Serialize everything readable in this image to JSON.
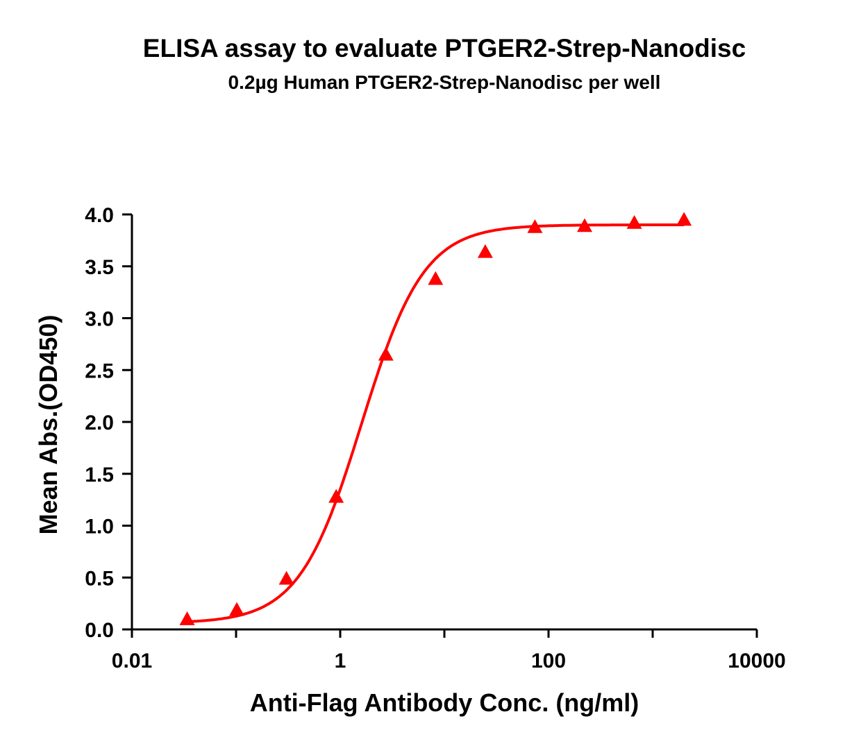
{
  "chart_data": {
    "type": "scatter",
    "title": "ELISA assay to evaluate PTGER2-Strep-Nanodisc",
    "subtitle": "0.2µg Human PTGER2-Strep-Nanodisc per well",
    "xlabel": "Anti-Flag Antibody Conc. (ng/ml)",
    "ylabel": "Mean Abs.(OD450)",
    "x_scale": "log",
    "xlim": [
      0.01,
      10000
    ],
    "ylim": [
      0,
      4.0
    ],
    "x_ticks": [
      "0.01",
      "1",
      "100",
      "10000"
    ],
    "y_ticks": [
      "0.0",
      "0.5",
      "1.0",
      "1.5",
      "2.0",
      "2.5",
      "3.0",
      "3.5",
      "4.0"
    ],
    "grid": false,
    "marker": "triangle",
    "color": "#ff0000",
    "fit_curve": "4-parameter logistic",
    "series": [
      {
        "x": [
          0.0339,
          0.1016,
          0.3048,
          0.9145,
          2.743,
          8.23,
          24.69,
          74.07,
          222.2,
          666.7,
          2000
        ],
        "y": [
          0.1,
          0.19,
          0.49,
          1.28,
          2.65,
          3.38,
          3.64,
          3.88,
          3.89,
          3.92,
          3.95
        ]
      }
    ]
  }
}
